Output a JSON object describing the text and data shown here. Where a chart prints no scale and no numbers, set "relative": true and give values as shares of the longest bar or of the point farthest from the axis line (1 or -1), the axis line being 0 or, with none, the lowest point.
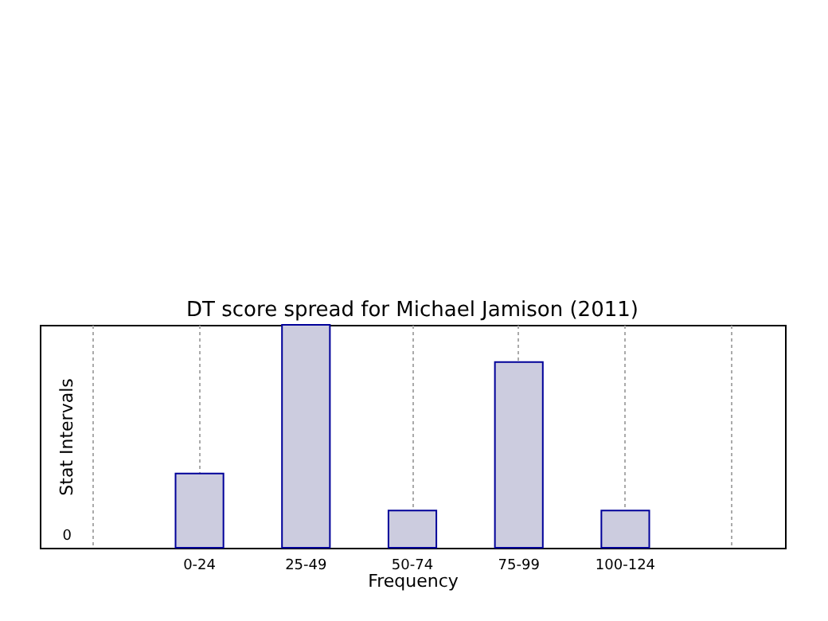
{
  "chart_data": {
    "type": "bar",
    "title": "DT score spread for Michael Jamison (2011)",
    "xlabel": "Frequency",
    "ylabel": "Stat Intervals",
    "categories": [
      null,
      "0-24",
      "25-49",
      "50-74",
      "75-99",
      "100-124",
      null
    ],
    "values": [
      null,
      0.333,
      1,
      0.167,
      0.833,
      0.167,
      null
    ],
    "color": "#ccccdf",
    "relative": true,
    "grid": "x",
    "annotations": [
      "0"
    ]
  }
}
